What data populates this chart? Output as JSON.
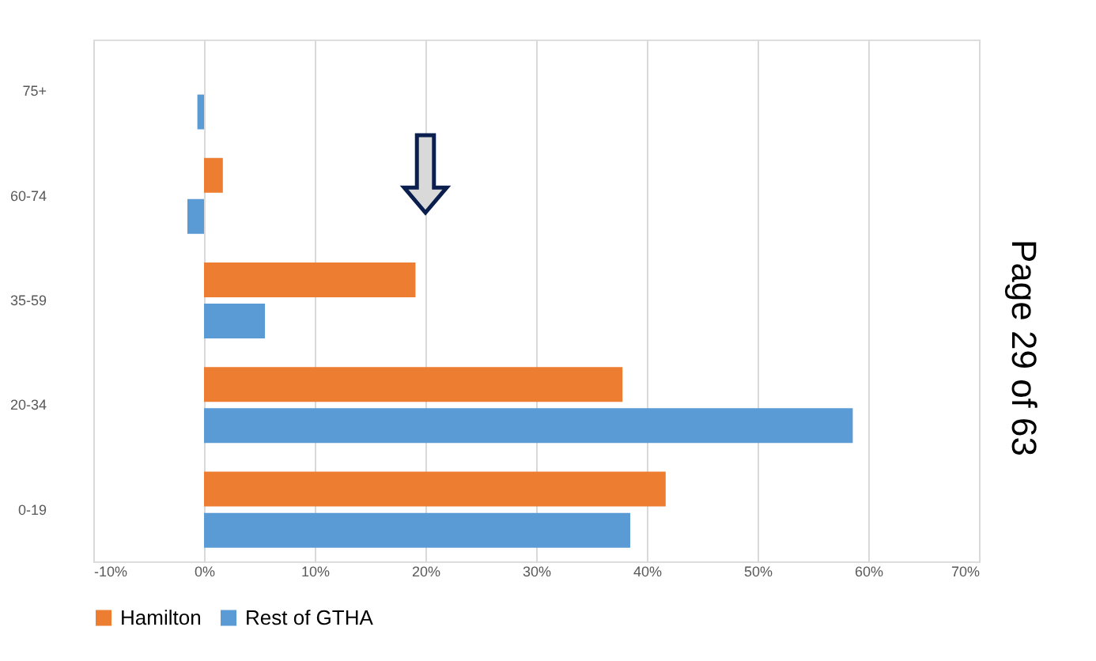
{
  "chart_data": {
    "type": "bar",
    "orientation": "horizontal",
    "categories": [
      "75+",
      "60-74",
      "35-59",
      "20-34",
      "0-19"
    ],
    "series": [
      {
        "name": "Hamilton",
        "color": "#ed7d31",
        "values": [
          0,
          1.7,
          19.1,
          37.8,
          41.7
        ]
      },
      {
        "name": "Rest of GTHA",
        "color": "#5b9bd5",
        "values": [
          -0.6,
          -1.5,
          5.5,
          58.6,
          38.5
        ]
      }
    ],
    "xlim": [
      -10,
      70
    ],
    "xticks": [
      {
        "value": -10,
        "label": "-10%"
      },
      {
        "value": 0,
        "label": "0%"
      },
      {
        "value": 10,
        "label": "10%"
      },
      {
        "value": 20,
        "label": "20%"
      },
      {
        "value": 30,
        "label": "30%"
      },
      {
        "value": 40,
        "label": "40%"
      },
      {
        "value": 50,
        "label": "50%"
      },
      {
        "value": 60,
        "label": "60%"
      },
      {
        "value": 70,
        "label": "70%"
      }
    ],
    "grid": "x",
    "legend": "bottom",
    "annotations": [
      "Page 29 of 63"
    ]
  }
}
